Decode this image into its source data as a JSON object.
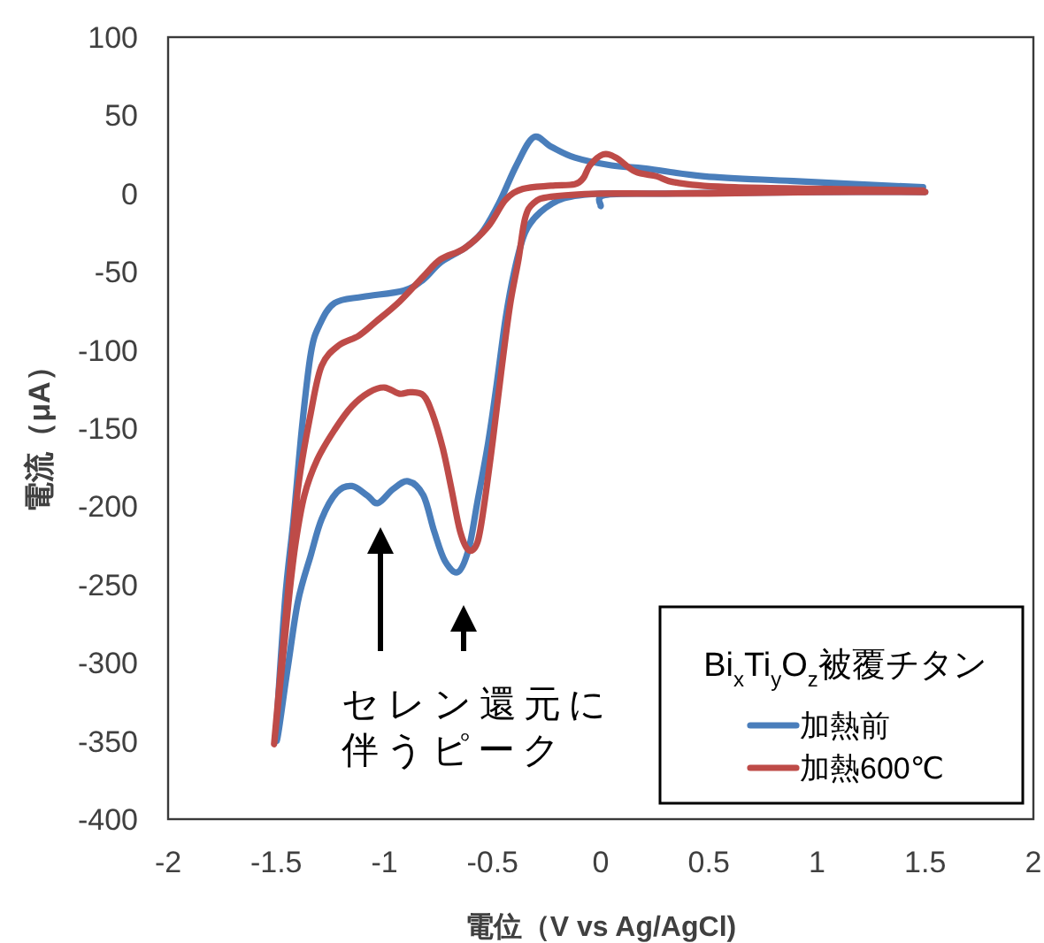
{
  "chart_data": {
    "type": "line",
    "xlabel": "電位（V vs Ag/AgCl)",
    "ylabel": "電流（μA）",
    "legend_title": "Bi$_{x}$Ti$_{y}$O$_{z}$被覆チタン",
    "annotations": [
      "セレン還元に伴うピーク"
    ],
    "xlim": [
      -2,
      2
    ],
    "xticks": [
      -2,
      -1.5,
      -1,
      -0.5,
      0,
      0.5,
      1,
      1.5,
      2
    ],
    "ylim": [
      -400,
      100
    ],
    "yticks": [
      -400,
      -350,
      -300,
      -250,
      -200,
      -150,
      -100,
      -50,
      0,
      50,
      100
    ],
    "grid": false,
    "legend": "bottom right",
    "series": [
      {
        "name": "加熱前",
        "color": "#4a7ebb",
        "x": [
          0,
          0.02,
          0.3,
          1.0,
          1.5,
          1.0,
          0.3,
          0.0,
          -0.17,
          -0.28,
          -0.35,
          -0.4,
          -0.44,
          -0.48,
          -0.52,
          -0.57,
          -0.61,
          -0.66,
          -0.72,
          -0.77,
          -0.82,
          -0.89,
          -0.96,
          -1.03,
          -1.08,
          -1.15,
          -1.22,
          -1.29,
          -1.34,
          -1.4,
          -1.45,
          -1.5,
          -1.46,
          -1.42,
          -1.38,
          -1.34,
          -1.3,
          -1.23,
          -1.1,
          -0.91,
          -0.82,
          -0.74,
          -0.63,
          -0.55,
          -0.47,
          -0.39,
          -0.31,
          -0.23,
          -0.12,
          0.05,
          0.21,
          0.48,
          0.89,
          1.49
        ],
        "values": [
          -8,
          -1,
          0,
          1,
          1,
          1,
          0,
          0,
          -3,
          -12,
          -25,
          -50,
          -80,
          -121,
          -159,
          -197,
          -227,
          -242,
          -235,
          -216,
          -193,
          -184,
          -189,
          -198,
          -193,
          -187,
          -191,
          -208,
          -231,
          -261,
          -306,
          -349,
          -261,
          -208,
          -148,
          -102,
          -84,
          -70,
          -66,
          -62,
          -55,
          -44,
          -35,
          -25,
          -6,
          18,
          36,
          30,
          23,
          18,
          16,
          11,
          8,
          4
        ]
      },
      {
        "name": "加熱600℃",
        "color": "#be4b48",
        "x": [
          0,
          0.5,
          1.0,
          1.5,
          1.0,
          0.3,
          0.0,
          -0.23,
          -0.31,
          -0.35,
          -0.38,
          -0.42,
          -0.46,
          -0.5,
          -0.54,
          -0.57,
          -0.61,
          -0.65,
          -0.69,
          -0.73,
          -0.78,
          -0.82,
          -0.88,
          -0.93,
          -1.0,
          -1.07,
          -1.15,
          -1.23,
          -1.31,
          -1.37,
          -1.41,
          -1.44,
          -1.51,
          -1.45,
          -1.4,
          -1.34,
          -1.29,
          -1.21,
          -1.12,
          -1.04,
          -0.93,
          -0.82,
          -0.74,
          -0.63,
          -0.52,
          -0.44,
          -0.36,
          -0.23,
          -0.12,
          -0.08,
          -0.05,
          0.01,
          0.07,
          0.16,
          0.26,
          0.35,
          0.62,
          1.49
        ],
        "values": [
          0,
          0,
          1,
          1,
          1,
          0,
          0,
          -2,
          -6,
          -16,
          -42,
          -72,
          -114,
          -159,
          -200,
          -223,
          -228,
          -216,
          -189,
          -163,
          -140,
          -129,
          -127,
          -128,
          -124,
          -127,
          -136,
          -151,
          -170,
          -193,
          -223,
          -257,
          -352,
          -261,
          -189,
          -140,
          -110,
          -97,
          -91,
          -82,
          -69,
          -53,
          -42,
          -35,
          -21,
          -4,
          3,
          5,
          6,
          10,
          18,
          25,
          23,
          14,
          11,
          7,
          4,
          2
        ]
      }
    ]
  }
}
